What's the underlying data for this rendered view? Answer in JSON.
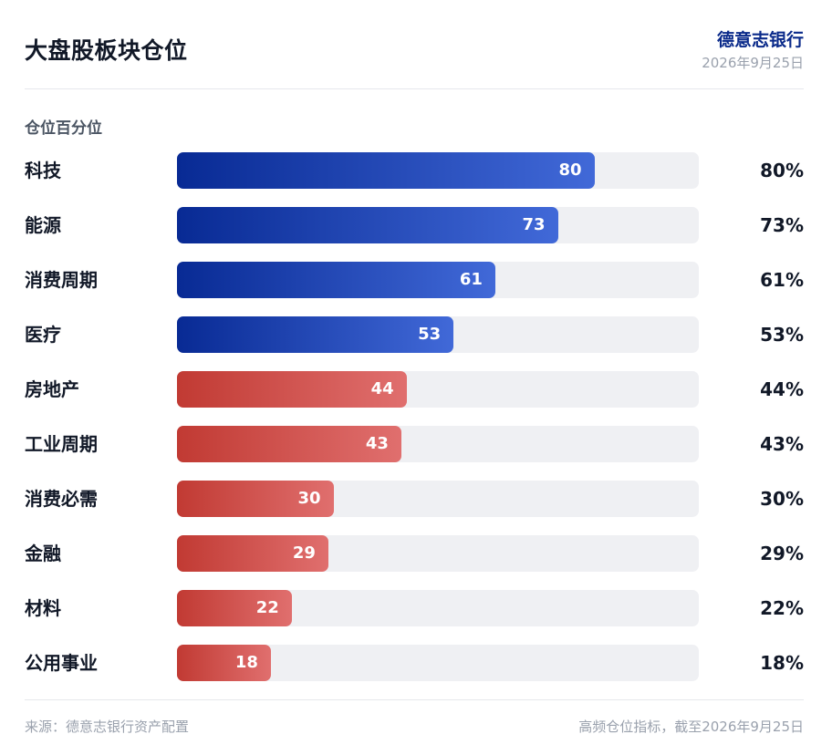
{
  "header": {
    "title": "大盘股板块仓位",
    "brand": "德意志银行",
    "date": "2026年9月25日"
  },
  "footer": {
    "source": "来源：德意志银行资产配置",
    "note": "高频仓位指标，截至2026年9月25日"
  },
  "colors": {
    "blue_start": "#082a94",
    "blue_end": "#4169d8",
    "red_start": "#c13a33",
    "red_end": "#e06f6e",
    "track": "#eff0f3"
  },
  "chart_data": {
    "type": "bar",
    "orientation": "horizontal",
    "title": "",
    "xlabel": "仓位百分位",
    "ylabel": "",
    "xlim": [
      0,
      100
    ],
    "grid": false,
    "categories": [
      "科技",
      "能源",
      "消费周期",
      "医疗",
      "房地产",
      "工业周期",
      "消费必需",
      "金融",
      "材料",
      "公用事业"
    ],
    "values": [
      80,
      73,
      61,
      53,
      44,
      43,
      30,
      29,
      22,
      18
    ],
    "value_labels": [
      "80",
      "73",
      "61",
      "53",
      "44",
      "43",
      "30",
      "29",
      "22",
      "18"
    ],
    "percent_labels": [
      "80%",
      "73%",
      "61%",
      "53%",
      "44%",
      "43%",
      "30%",
      "29%",
      "22%",
      "18%"
    ],
    "bar_colors": [
      "blue",
      "blue",
      "blue",
      "blue",
      "red",
      "red",
      "red",
      "red",
      "red",
      "red"
    ]
  }
}
